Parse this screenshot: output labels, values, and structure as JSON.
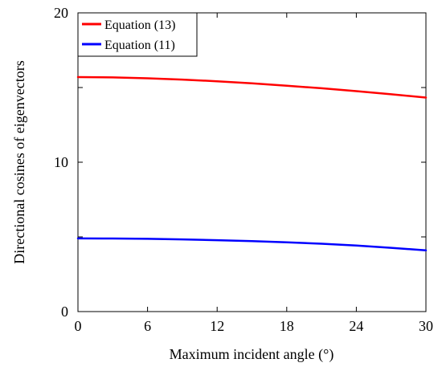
{
  "chart_data": {
    "type": "line",
    "xlabel": "Maximum incident angle (°)",
    "ylabel": "Directional cosines of eigenvectors",
    "xlim": [
      0,
      30
    ],
    "ylim": [
      0,
      20
    ],
    "xticks": [
      0,
      6,
      12,
      18,
      24,
      30
    ],
    "yticks": [
      0,
      10,
      20
    ],
    "y_minor_ticks": [
      5,
      15
    ],
    "grid": false,
    "legend_position": "top-left",
    "x": [
      0,
      3,
      6,
      9,
      12,
      15,
      18,
      21,
      24,
      27,
      30
    ],
    "series": [
      {
        "name": "Equation (13)",
        "color": "#ff0000",
        "values": [
          15.7,
          15.68,
          15.62,
          15.53,
          15.42,
          15.28,
          15.12,
          14.95,
          14.76,
          14.55,
          14.33
        ]
      },
      {
        "name": "Equation (11)",
        "color": "#0000ff",
        "values": [
          4.9,
          4.89,
          4.87,
          4.83,
          4.78,
          4.72,
          4.64,
          4.54,
          4.42,
          4.27,
          4.1
        ]
      }
    ]
  }
}
